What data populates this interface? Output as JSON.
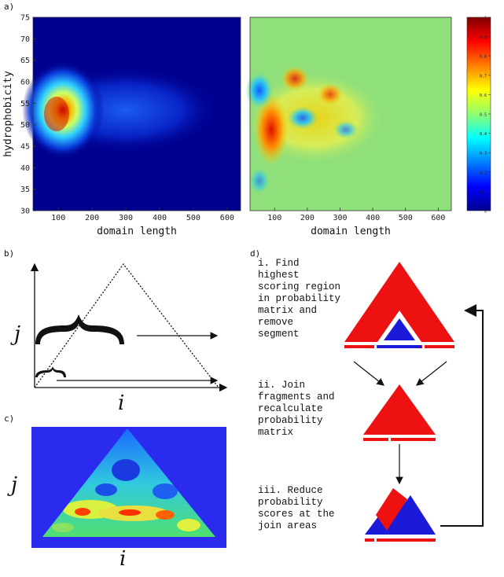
{
  "panels": {
    "a": "a)",
    "b": "b)",
    "c": "c)",
    "d": "d)"
  },
  "colors": {
    "background_dark": "#00008f",
    "background_green": "#8fe07a",
    "red": "#ee1111",
    "blue": "#1a1ad8",
    "pyramid_bg": "#2b2bf0"
  },
  "chart_data": [
    {
      "type": "heatmap",
      "title": "",
      "xlabel": "domain length",
      "ylabel": "hydrophobicity",
      "xlim": [
        25,
        640
      ],
      "ylim": [
        30,
        75
      ],
      "xticks": [
        100,
        200,
        300,
        400,
        500,
        600
      ],
      "yticks": [
        30,
        35,
        40,
        45,
        50,
        55,
        60,
        65,
        70,
        75
      ],
      "peak": {
        "x": 105,
        "y": 53
      },
      "grid": false
    },
    {
      "type": "heatmap",
      "title": "",
      "xlabel": "domain length",
      "ylabel": "",
      "xlim": [
        25,
        640
      ],
      "ylim": [
        30,
        75
      ],
      "xticks": [
        100,
        200,
        300,
        400,
        500,
        600
      ],
      "peak": {
        "x": 100,
        "y": 47
      },
      "grid": false
    }
  ],
  "colorbar": {
    "ticks": [
      "0",
      "0.1",
      "0.2",
      "0.3",
      "0.4",
      "0.5",
      "0.6",
      "0.7",
      "0.8",
      "0.9",
      "1"
    ],
    "min": 0,
    "max": 1
  },
  "schematic": {
    "axis_i": "i",
    "axis_j": "j"
  },
  "steps": [
    {
      "label": "i. Find highest\nscoring region\nin probability\nmatrix and\nremove\nsegment"
    },
    {
      "label": "ii. Join\nfragments and\nrecalculate\nprobability\nmatrix"
    },
    {
      "label": "iii. Reduce\nprobability\nscores at the\njoin areas"
    }
  ]
}
